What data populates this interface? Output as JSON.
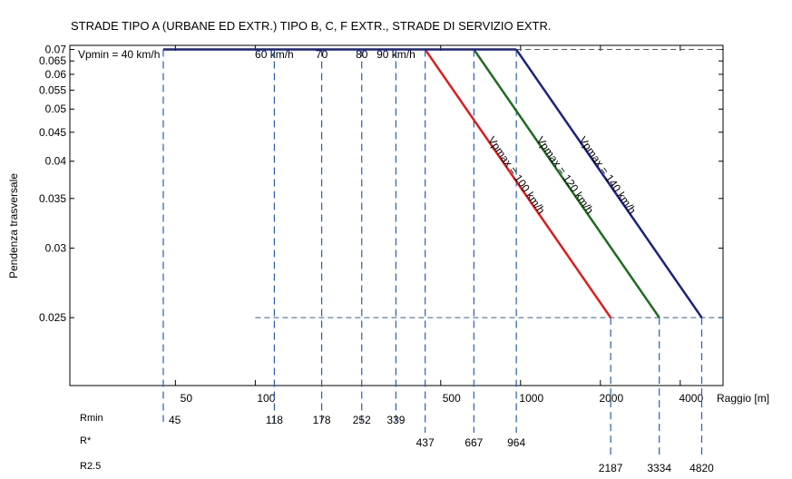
{
  "chart_data": {
    "type": "line",
    "title": "STRADE TIPO A (URBANE ED EXTR.) TIPO B,  C,  F EXTR., STRADE DI SERVIZIO EXTR.",
    "xlabel": "Raggio [m]",
    "ylabel": "Pendenza trasversale",
    "x_scale": "log",
    "xlim": [
      20,
      5800
    ],
    "ylim": [
      0.0215,
      0.072
    ],
    "y_scale": "reciprocal",
    "yticks": [
      "0.07",
      "0.065",
      "0.06",
      "0.055",
      "0.05",
      "0.045",
      "0.04",
      "0.035",
      "0.03",
      "0.025"
    ],
    "ytick_values": [
      0.07,
      0.065,
      0.06,
      0.055,
      0.05,
      0.045,
      0.04,
      0.035,
      0.03,
      0.025
    ],
    "xticks": [
      "50",
      "100",
      "500",
      "1000",
      "2000",
      "4000"
    ],
    "xtick_values": [
      50,
      100,
      500,
      1000,
      2000,
      4000
    ],
    "vpmin_labels": [
      {
        "text": "Vpmin = 40 km/h",
        "x": 45
      },
      {
        "text": "60 km/h",
        "x": 118
      },
      {
        "text": "70",
        "x": 178
      },
      {
        "text": "80",
        "x": 252
      },
      {
        "text": "90 km/h",
        "x": 339
      }
    ],
    "series": [
      {
        "name": "Vpmax = 100 km/h",
        "color": "#dd1c1c",
        "x": [
          45,
          437,
          2187
        ],
        "y": [
          0.07,
          0.07,
          0.025
        ]
      },
      {
        "name": "Vpmax = 120 km/h",
        "color": "#1e6b1e",
        "x": [
          45,
          667,
          3334
        ],
        "y": [
          0.07,
          0.07,
          0.025
        ]
      },
      {
        "name": "Vpmax = 140 km/h",
        "color": "#1a237e",
        "x": [
          45,
          964,
          4820
        ],
        "y": [
          0.07,
          0.07,
          0.025
        ]
      }
    ],
    "ref_rows": [
      {
        "label": "Rmin",
        "values": [
          "45",
          "118",
          "178",
          "252",
          "339"
        ],
        "x": [
          45,
          118,
          178,
          252,
          339
        ]
      },
      {
        "label": "R*",
        "values": [
          "437",
          "667",
          "964"
        ],
        "x": [
          437,
          667,
          964
        ]
      },
      {
        "label": "R2.5",
        "values": [
          "2187",
          "3334",
          "4820"
        ],
        "x": [
          2187,
          3334,
          4820
        ]
      }
    ],
    "reference_line_color": "#2a5db0",
    "grid": false
  }
}
